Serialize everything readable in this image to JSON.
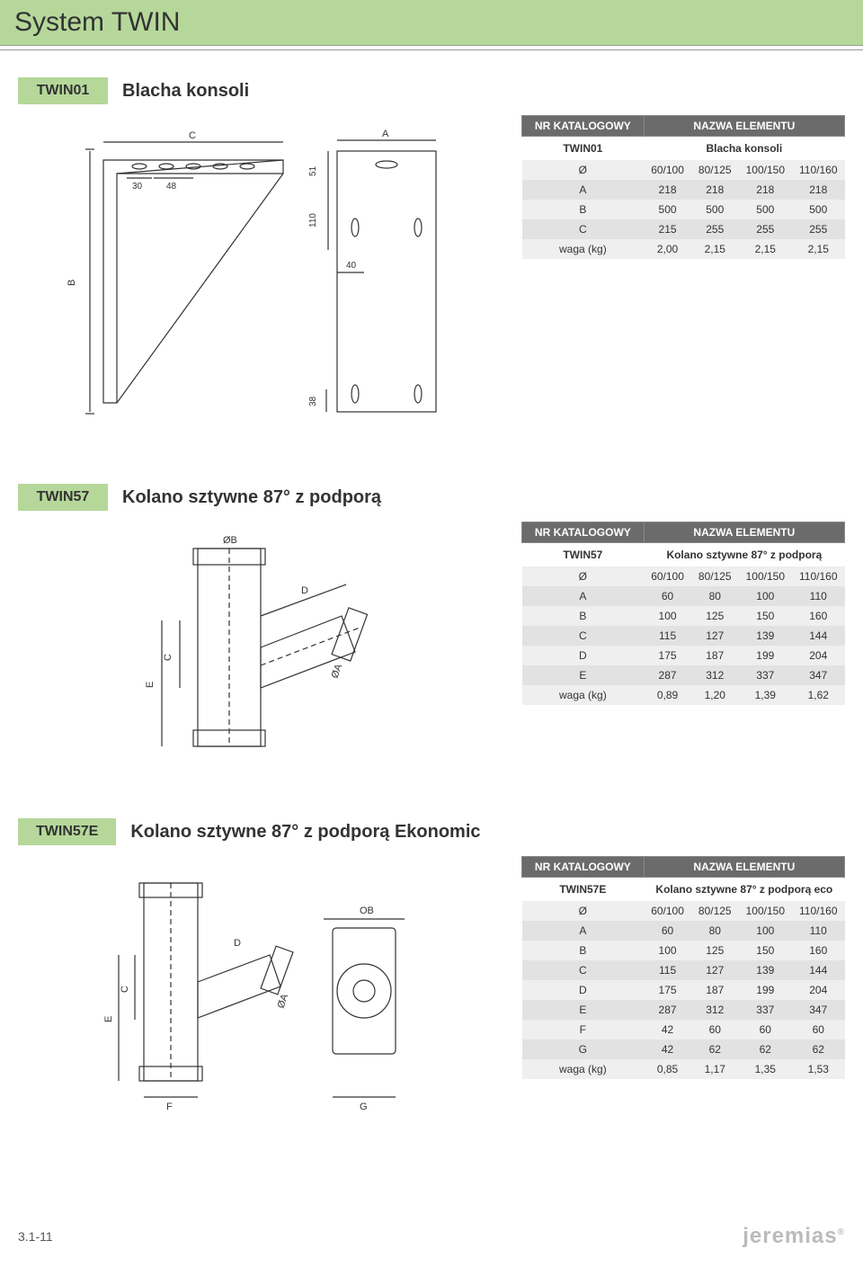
{
  "page_title": "System TWIN",
  "page_number": "3.1-11",
  "brand": "jeremias",
  "colors": {
    "accent": "#b5d89a",
    "header_gray": "#6b6b6b",
    "row_light": "#efefef",
    "row_dark": "#e2e2e2"
  },
  "table_header": {
    "col1": "NR KATALOGOWY",
    "col2": "NAZWA ELEMENTU"
  },
  "sections": [
    {
      "code": "TWIN01",
      "name": "Blacha konsoli",
      "element_name": "Blacha konsoli",
      "diameters": [
        "60/100",
        "80/125",
        "100/150",
        "110/160"
      ],
      "rows": [
        {
          "label": "A",
          "vals": [
            "218",
            "218",
            "218",
            "218"
          ]
        },
        {
          "label": "B",
          "vals": [
            "500",
            "500",
            "500",
            "500"
          ]
        },
        {
          "label": "C",
          "vals": [
            "215",
            "255",
            "255",
            "255"
          ]
        },
        {
          "label": "waga (kg)",
          "vals": [
            "2,00",
            "2,15",
            "2,15",
            "2,15"
          ]
        }
      ],
      "drawing_labels": [
        "C",
        "A",
        "B",
        "30",
        "48",
        "51",
        "110",
        "40",
        "38"
      ]
    },
    {
      "code": "TWIN57",
      "name": "Kolano sztywne 87° z podporą",
      "element_name": "Kolano sztywne 87° z podporą",
      "diameters": [
        "60/100",
        "80/125",
        "100/150",
        "110/160"
      ],
      "rows": [
        {
          "label": "A",
          "vals": [
            "60",
            "80",
            "100",
            "110"
          ]
        },
        {
          "label": "B",
          "vals": [
            "100",
            "125",
            "150",
            "160"
          ]
        },
        {
          "label": "C",
          "vals": [
            "115",
            "127",
            "139",
            "144"
          ]
        },
        {
          "label": "D",
          "vals": [
            "175",
            "187",
            "199",
            "204"
          ]
        },
        {
          "label": "E",
          "vals": [
            "287",
            "312",
            "337",
            "347"
          ]
        },
        {
          "label": "waga (kg)",
          "vals": [
            "0,89",
            "1,20",
            "1,39",
            "1,62"
          ]
        }
      ],
      "drawing_labels": [
        "ØB",
        "ØA",
        "C",
        "D",
        "E"
      ]
    },
    {
      "code": "TWIN57E",
      "name": "Kolano sztywne 87° z podporą Ekonomic",
      "element_name": "Kolano sztywne 87° z podporą eco",
      "diameters": [
        "60/100",
        "80/125",
        "100/150",
        "110/160"
      ],
      "rows": [
        {
          "label": "A",
          "vals": [
            "60",
            "80",
            "100",
            "110"
          ]
        },
        {
          "label": "B",
          "vals": [
            "100",
            "125",
            "150",
            "160"
          ]
        },
        {
          "label": "C",
          "vals": [
            "115",
            "127",
            "139",
            "144"
          ]
        },
        {
          "label": "D",
          "vals": [
            "175",
            "187",
            "199",
            "204"
          ]
        },
        {
          "label": "E",
          "vals": [
            "287",
            "312",
            "337",
            "347"
          ]
        },
        {
          "label": "F",
          "vals": [
            "42",
            "60",
            "60",
            "60"
          ]
        },
        {
          "label": "G",
          "vals": [
            "42",
            "62",
            "62",
            "62"
          ]
        },
        {
          "label": "waga (kg)",
          "vals": [
            "0,85",
            "1,17",
            "1,35",
            "1,53"
          ]
        }
      ],
      "drawing_labels": [
        "OB",
        "ØA",
        "C",
        "D",
        "E",
        "F",
        "G"
      ]
    }
  ]
}
